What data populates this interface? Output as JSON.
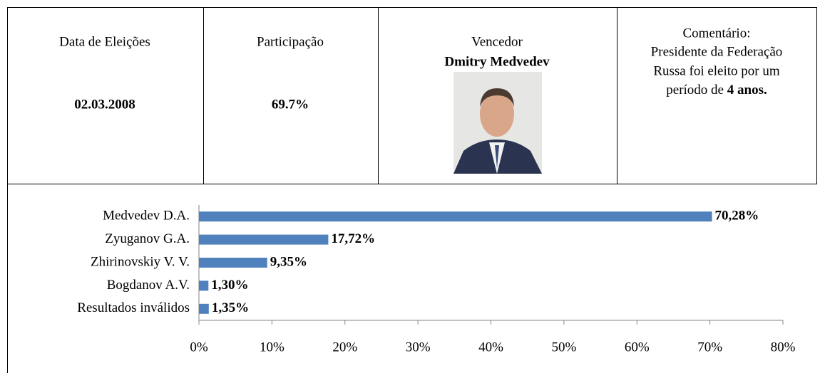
{
  "header_table": {
    "election_date": {
      "label": "Data de Eleições",
      "value": "02.03.2008"
    },
    "turnout": {
      "label": "Participação",
      "value": "69.7%"
    },
    "winner": {
      "label": "Vencedor",
      "name": "Dmitry Medvedev"
    },
    "comment": {
      "lines": [
        "Comentário:",
        "Presidente da Federação",
        "Russa foi eleito por um",
        "período de"
      ],
      "emphasis": "4 anos."
    }
  },
  "chart_data": {
    "type": "hbar",
    "categories": [
      "Medvedev D.A.",
      "Zyuganov G.A.",
      "Zhirinovskiy V. V.",
      "Bogdanov A.V.",
      "Resultados inválidos"
    ],
    "values": [
      70.28,
      17.72,
      9.35,
      1.3,
      1.35
    ],
    "value_labels": [
      "70,28%",
      "17,72%",
      "9,35%",
      "1,30%",
      "1,35%"
    ],
    "color": "#4f81bd",
    "xlim": [
      0,
      80
    ],
    "xticks": [
      {
        "value": 0,
        "label": "0%"
      },
      {
        "value": 10,
        "label": "10%"
      },
      {
        "value": 20,
        "label": "20%"
      },
      {
        "value": 30,
        "label": "30%"
      },
      {
        "value": 40,
        "label": "40%"
      },
      {
        "value": 50,
        "label": "50%"
      },
      {
        "value": 60,
        "label": "60%"
      },
      {
        "value": 70,
        "label": "70%"
      },
      {
        "value": 80,
        "label": "80%"
      }
    ]
  }
}
